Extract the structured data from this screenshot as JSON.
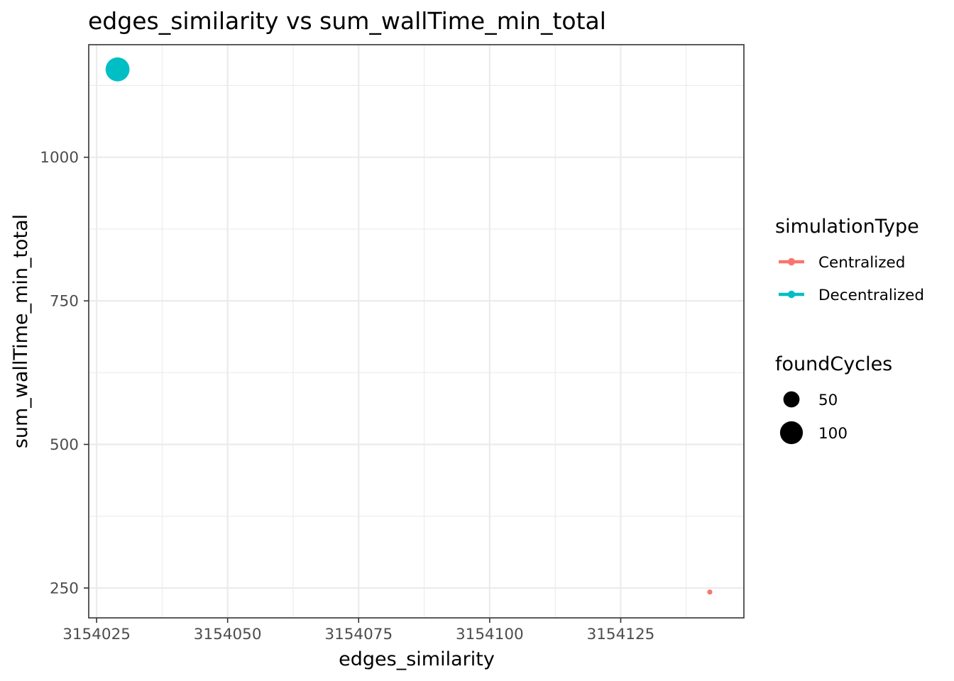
{
  "chart_data": {
    "type": "scatter",
    "title": "edges_similarity  vs  sum_wallTime_min_total",
    "xlabel": "edges_similarity",
    "ylabel": "sum_wallTime_min_total",
    "xlim": [
      3154023.5,
      3154148.5
    ],
    "ylim": [
      198,
      1196
    ],
    "x_ticks": [
      3154025,
      3154050,
      3154075,
      3154100,
      3154125
    ],
    "x_tick_labels": [
      "3154025",
      "3154050",
      "3154075",
      "3154100",
      "3154125"
    ],
    "y_ticks": [
      250,
      500,
      750,
      1000
    ],
    "y_tick_labels": [
      "250",
      "500",
      "750",
      "1000"
    ],
    "x_minor_ticks": [
      3154037.5,
      3154062.5,
      3154087.5,
      3154112.5,
      3154137.5
    ],
    "y_minor_ticks": [
      375,
      625,
      875,
      1125
    ],
    "grid": true,
    "legend_placement": "right",
    "series": [
      {
        "name": "Centralized",
        "color": "#F8766D",
        "points": [
          {
            "x": 3154142,
            "y": 243,
            "foundCycles": 5
          }
        ]
      },
      {
        "name": "Decentralized",
        "color": "#00BFC4",
        "points": [
          {
            "x": 3154029,
            "y": 1153,
            "foundCycles": 110
          }
        ]
      }
    ],
    "legend": {
      "color_title": "simulationType",
      "color_entries": [
        {
          "label": "Centralized",
          "color": "#F8766D"
        },
        {
          "label": "Decentralized",
          "color": "#00BFC4"
        }
      ],
      "size_title": "foundCycles",
      "size_entries": [
        {
          "label": "50",
          "value": 50
        },
        {
          "label": "100",
          "value": 100
        }
      ]
    }
  }
}
